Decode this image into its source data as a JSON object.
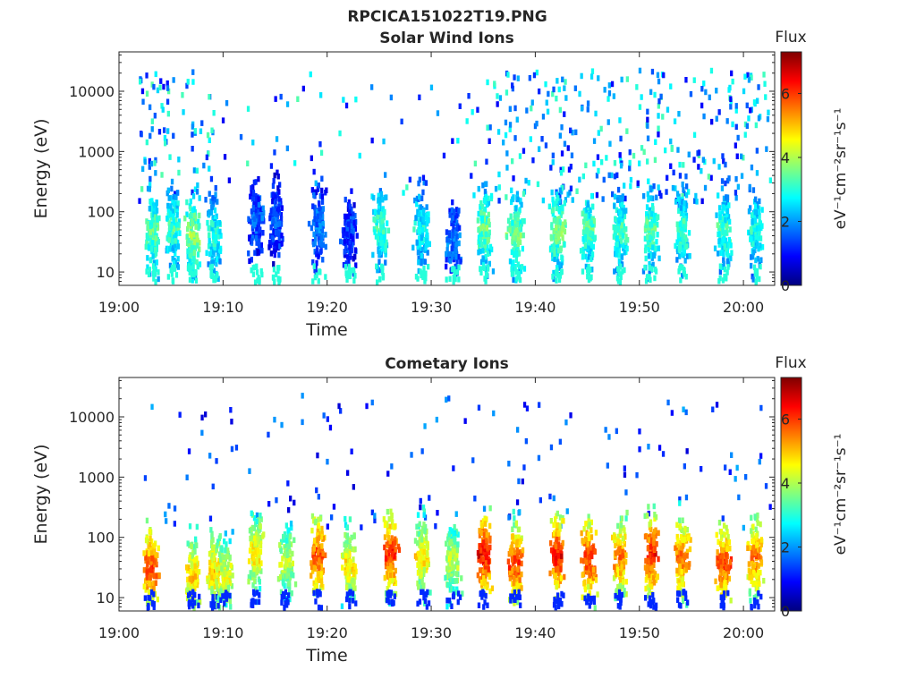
{
  "figure_title": "RPCICA151022T19.PNG",
  "chart_data": [
    {
      "type": "heatmap",
      "title": "Solar Wind Ions",
      "xlabel": "Time",
      "ylabel": "Energy (eV)",
      "y_scale": "log",
      "ylim": [
        6,
        45000
      ],
      "xlim": [
        "19:00",
        "20:03"
      ],
      "x_ticks": [
        "19:00",
        "19:10",
        "19:20",
        "19:30",
        "19:40",
        "19:50",
        "20:00"
      ],
      "y_ticks": [
        "10",
        "100",
        "1000",
        "10000"
      ],
      "colorbar": {
        "label_top": "Flux",
        "unit": "eV⁻¹cm⁻²sr⁻¹s⁻¹",
        "ticks": [
          "0",
          "2",
          "4",
          "6"
        ],
        "range": [
          0,
          7.3
        ],
        "colormap": "jet"
      },
      "bursts": [
        {
          "t": "19:03",
          "e": 50,
          "f": 3.5
        },
        {
          "t": "19:05",
          "e": 60,
          "f": 3.2
        },
        {
          "t": "19:07",
          "e": 45,
          "f": 3.8
        },
        {
          "t": "19:09",
          "e": 45,
          "f": 3.0
        },
        {
          "t": "19:13",
          "e": 90,
          "f": 1.6
        },
        {
          "t": "19:15",
          "e": 90,
          "f": 1.5
        },
        {
          "t": "19:19",
          "e": 60,
          "f": 1.8
        },
        {
          "t": "19:22",
          "e": 50,
          "f": 1.4
        },
        {
          "t": "19:25",
          "e": 60,
          "f": 3.2
        },
        {
          "t": "19:29",
          "e": 60,
          "f": 2.8
        },
        {
          "t": "19:32",
          "e": 40,
          "f": 1.8
        },
        {
          "t": "19:35",
          "e": 60,
          "f": 3.5
        },
        {
          "t": "19:38",
          "e": 45,
          "f": 3.6
        },
        {
          "t": "19:42",
          "e": 55,
          "f": 3.6
        },
        {
          "t": "19:45",
          "e": 55,
          "f": 3.4
        },
        {
          "t": "19:48",
          "e": 55,
          "f": 3.2
        },
        {
          "t": "19:51",
          "e": 55,
          "f": 3.4
        },
        {
          "t": "19:54",
          "e": 55,
          "f": 3.2
        },
        {
          "t": "19:58",
          "e": 55,
          "f": 3.2
        },
        {
          "t": "20:01",
          "e": 55,
          "f": 3.0
        }
      ]
    },
    {
      "type": "heatmap",
      "title": "Cometary Ions",
      "xlabel": "Time",
      "ylabel": "Energy (eV)",
      "y_scale": "log",
      "ylim": [
        6,
        45000
      ],
      "xlim": [
        "19:00",
        "20:03"
      ],
      "x_ticks": [
        "19:00",
        "19:10",
        "19:20",
        "19:30",
        "19:40",
        "19:50",
        "20:00"
      ],
      "y_ticks": [
        "10",
        "100",
        "1000",
        "10000"
      ],
      "colorbar": {
        "label_top": "Flux",
        "unit": "eV⁻¹cm⁻²sr⁻¹s⁻¹",
        "ticks": [
          "0",
          "2",
          "4",
          "6"
        ],
        "range": [
          0,
          7.3
        ],
        "colormap": "jet"
      },
      "bursts": [
        {
          "t": "19:03",
          "e": 35,
          "f": 6.0
        },
        {
          "t": "19:07",
          "e": 25,
          "f": 5.0
        },
        {
          "t": "19:09",
          "e": 30,
          "f": 5.0
        },
        {
          "t": "19:10",
          "e": 25,
          "f": 4.5
        },
        {
          "t": "19:13",
          "e": 60,
          "f": 4.8
        },
        {
          "t": "19:16",
          "e": 45,
          "f": 4.2
        },
        {
          "t": "19:19",
          "e": 55,
          "f": 6.0
        },
        {
          "t": "19:22",
          "e": 40,
          "f": 4.8
        },
        {
          "t": "19:26",
          "e": 60,
          "f": 6.2
        },
        {
          "t": "19:29",
          "e": 50,
          "f": 4.8
        },
        {
          "t": "19:32",
          "e": 45,
          "f": 4.2
        },
        {
          "t": "19:35",
          "e": 60,
          "f": 6.6
        },
        {
          "t": "19:38",
          "e": 40,
          "f": 6.0
        },
        {
          "t": "19:42",
          "e": 55,
          "f": 6.4
        },
        {
          "t": "19:45",
          "e": 50,
          "f": 6.2
        },
        {
          "t": "19:48",
          "e": 50,
          "f": 5.6
        },
        {
          "t": "19:51",
          "e": 55,
          "f": 6.4
        },
        {
          "t": "19:54",
          "e": 50,
          "f": 5.8
        },
        {
          "t": "19:58",
          "e": 40,
          "f": 6.0
        },
        {
          "t": "20:01",
          "e": 50,
          "f": 5.6
        }
      ]
    }
  ]
}
